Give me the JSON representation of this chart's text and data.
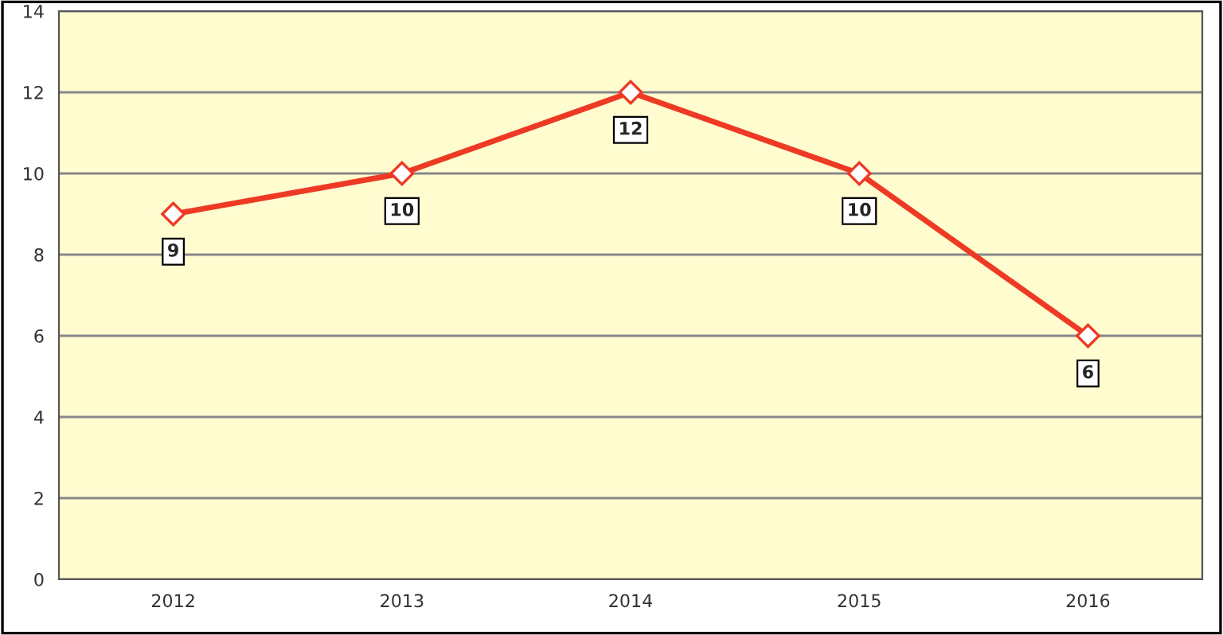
{
  "chart_data": {
    "type": "line",
    "categories": [
      "2012",
      "2013",
      "2014",
      "2015",
      "2016"
    ],
    "series": [
      {
        "color": "#ee3a24",
        "values": [
          9,
          10,
          12,
          10,
          6
        ]
      }
    ],
    "ylim": [
      0,
      14
    ],
    "yticks": [
      0,
      2,
      4,
      6,
      8,
      10,
      12,
      14
    ],
    "grid": "y",
    "marker": "diamond",
    "line_style": "solid",
    "data_labels": true
  }
}
